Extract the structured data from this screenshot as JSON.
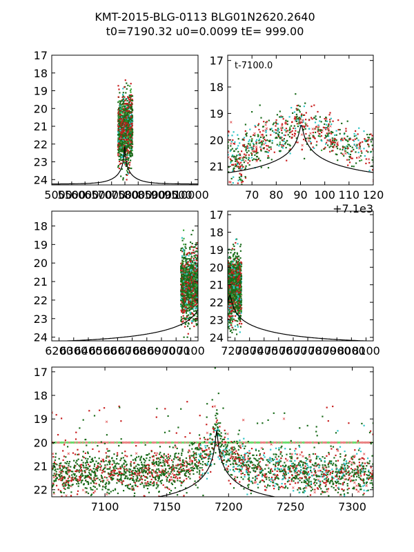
{
  "figure": {
    "title_line1": "KMT-2015-BLG-0113 BLG01N2620.2640",
    "title_line2": "t0=7190.32 u0=0.0099 tE= 999.00"
  },
  "colors": {
    "series_dark_green": "#1a6b1a",
    "series_red": "#c81e1e",
    "series_cyan": "#2ec4c4",
    "series_green_x": "#3aa83a",
    "series_red_x": "#e05050",
    "model_curve": "#000000",
    "baseline": "#32cd32"
  },
  "chart_data": [
    {
      "id": "panel-top-left",
      "type": "scatter",
      "title": "",
      "xlim": [
        4050,
        10350
      ],
      "ylim": [
        24.3,
        17.0
      ],
      "y_inverted": true,
      "yticks": [
        17,
        18,
        19,
        20,
        21,
        22,
        23,
        24
      ],
      "xtick_labels": [
        "5000",
        "5500",
        "6000",
        "6500",
        "7000",
        "7500",
        "8000",
        "8500",
        "9000",
        "9500",
        "10000"
      ],
      "data_x_range": [
        7120,
        7320
      ],
      "data_y_range": [
        17.8,
        24.0
      ],
      "model": {
        "t0": 7190.32,
        "tE": 999.0,
        "baseline": 24.2,
        "peak": 21.9
      }
    },
    {
      "id": "panel-top-right",
      "type": "scatter",
      "annotation": "t-7100.0",
      "offset_label": "+7.1e3",
      "xlim": [
        60,
        120
      ],
      "ylim": [
        21.7,
        16.8
      ],
      "y_inverted": true,
      "yticks": [
        17,
        18,
        19,
        20,
        21
      ],
      "xticks": [
        70,
        80,
        90,
        100,
        110,
        120
      ],
      "points": [
        [
          61,
          20.2
        ],
        [
          62,
          20.8
        ],
        [
          63,
          21.0
        ],
        [
          64,
          20.5
        ],
        [
          65,
          20.9
        ],
        [
          66,
          21.2
        ],
        [
          67,
          20.0
        ],
        [
          68,
          20.6
        ],
        [
          70,
          20.3
        ],
        [
          71,
          20.0
        ],
        [
          72,
          20.5
        ],
        [
          74,
          19.7
        ],
        [
          75,
          20.2
        ],
        [
          77,
          20.0
        ],
        [
          80,
          19.8
        ],
        [
          81,
          19.5
        ],
        [
          82,
          19.9
        ],
        [
          84,
          20.0
        ],
        [
          86,
          19.6
        ],
        [
          88,
          19.3
        ],
        [
          89,
          19.0
        ],
        [
          90,
          19.5
        ],
        [
          92,
          19.4
        ],
        [
          94,
          19.7
        ],
        [
          96,
          19.5
        ],
        [
          98,
          19.8
        ],
        [
          100,
          19.9
        ],
        [
          101,
          19.6
        ],
        [
          103,
          19.9
        ],
        [
          104,
          20.1
        ],
        [
          106,
          20.0
        ],
        [
          108,
          20.2
        ],
        [
          110,
          20.4
        ],
        [
          112,
          20.1
        ],
        [
          114,
          20.3
        ],
        [
          118,
          20.2
        ],
        [
          119,
          20.6
        ]
      ],
      "model": {
        "t0": 7190.32,
        "tE": 999.0
      }
    },
    {
      "id": "panel-middle-left",
      "type": "scatter",
      "xlim": [
        6150,
        7150
      ],
      "ylim": [
        24.2,
        17.2
      ],
      "y_inverted": true,
      "yticks": [
        18,
        19,
        20,
        21,
        22,
        23,
        24
      ],
      "xtick_labels": [
        "6200",
        "6300",
        "6400",
        "6500",
        "6600",
        "6700",
        "6800",
        "6900",
        "7000",
        "7100"
      ],
      "data_x_range": [
        7050,
        7150
      ],
      "data_y_range": [
        17.6,
        24.0
      ]
    },
    {
      "id": "panel-middle-right",
      "type": "scatter",
      "xlim": [
        7150,
        8150
      ],
      "ylim": [
        24.2,
        16.8
      ],
      "y_inverted": true,
      "yticks": [
        17,
        18,
        19,
        20,
        21,
        22,
        23,
        24
      ],
      "xtick_labels": [
        "7200",
        "7300",
        "7400",
        "7500",
        "7600",
        "7700",
        "7800",
        "7900",
        "8000",
        "8100"
      ],
      "data_x_range": [
        7150,
        7250
      ],
      "data_y_range": [
        17.8,
        24.0
      ]
    },
    {
      "id": "panel-bottom",
      "type": "scatter",
      "xlim": [
        7057,
        7317
      ],
      "ylim": [
        22.3,
        16.8
      ],
      "y_inverted": true,
      "yticks": [
        17,
        18,
        19,
        20,
        21,
        22
      ],
      "xticks": [
        7100,
        7150,
        7200,
        7250,
        7300
      ],
      "baseline_mag": 20.0,
      "model": {
        "t0": 7190.32,
        "tE": 999.0
      }
    }
  ]
}
